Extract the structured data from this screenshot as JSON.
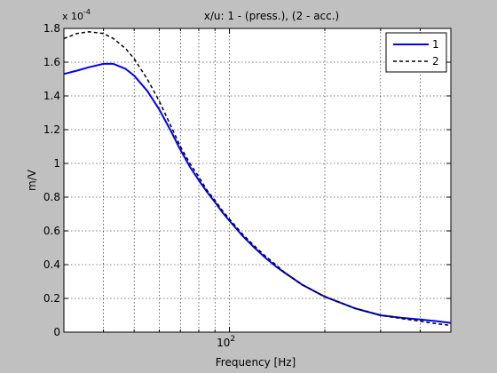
{
  "chart_data": {
    "type": "line",
    "title": "x/u: 1 - (press.), (2 - acc.)",
    "xlabel": "Frequency [Hz]",
    "ylabel": "m/V",
    "y_exponent_label": "x 10",
    "y_exponent_power": "-4",
    "xscale": "log",
    "xlim": [
      30,
      500
    ],
    "ylim": [
      0,
      1.8
    ],
    "x_major_ticks": [
      {
        "value": 100,
        "base": "10",
        "power": "2"
      }
    ],
    "x_minor_ticks": [
      40,
      50,
      60,
      70,
      80,
      90,
      200,
      300,
      400
    ],
    "y_ticks": [
      "0",
      "0.2",
      "0.4",
      "0.6",
      "0.8",
      "1",
      "1.2",
      "1.4",
      "1.6",
      "1.8"
    ],
    "grid": true,
    "legend_position": "top-right",
    "series": [
      {
        "name": "1",
        "color": "#0000ff",
        "dash": "solid",
        "x": [
          30,
          33,
          36,
          40,
          43,
          47,
          50,
          55,
          60,
          65,
          70,
          75,
          80,
          85,
          90,
          95,
          100,
          110,
          120,
          130,
          140,
          150,
          170,
          200,
          250,
          300,
          350,
          400,
          450,
          500
        ],
        "y": [
          1.53,
          1.55,
          1.57,
          1.59,
          1.59,
          1.56,
          1.52,
          1.43,
          1.32,
          1.2,
          1.08,
          0.98,
          0.9,
          0.83,
          0.77,
          0.71,
          0.66,
          0.57,
          0.5,
          0.44,
          0.39,
          0.35,
          0.28,
          0.21,
          0.14,
          0.1,
          0.085,
          0.075,
          0.065,
          0.055
        ]
      },
      {
        "name": "2",
        "color": "#000000",
        "dash": "dashed",
        "x": [
          30,
          33,
          36,
          40,
          43,
          47,
          50,
          55,
          60,
          65,
          70,
          75,
          80,
          85,
          90,
          95,
          100,
          110,
          120,
          130,
          140,
          150,
          170,
          200,
          250,
          300,
          350,
          400,
          450,
          500
        ],
        "y": [
          1.74,
          1.77,
          1.78,
          1.77,
          1.74,
          1.68,
          1.62,
          1.5,
          1.37,
          1.23,
          1.1,
          1.0,
          0.92,
          0.84,
          0.78,
          0.72,
          0.67,
          0.58,
          0.51,
          0.45,
          0.4,
          0.35,
          0.28,
          0.21,
          0.14,
          0.1,
          0.08,
          0.065,
          0.05,
          0.04
        ]
      }
    ]
  }
}
